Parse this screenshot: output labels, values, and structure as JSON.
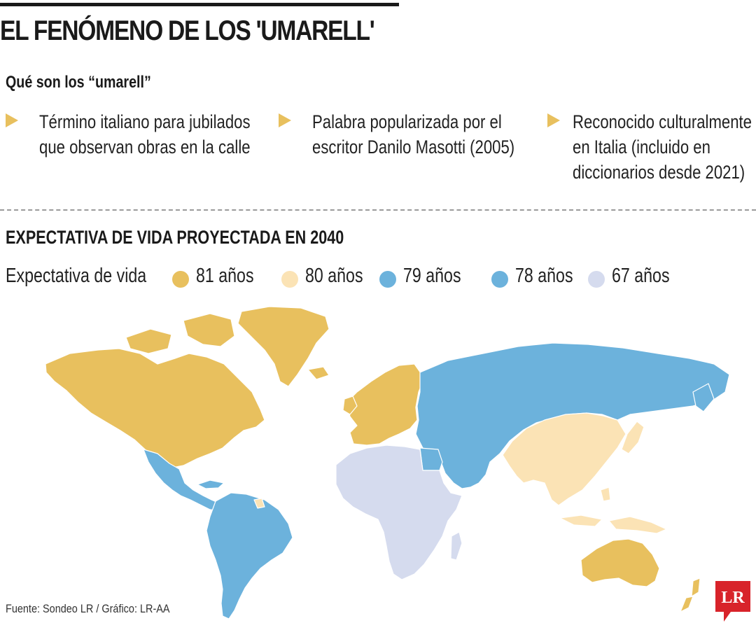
{
  "header": {
    "title": "EL FENÓMENO DE LOS 'UMARELL'",
    "subtitle": "Qué son los “umarell”"
  },
  "facts": [
    {
      "lines": [
        "Término italiano para jubilados",
        "que observan obras en la calle"
      ]
    },
    {
      "lines": [
        "Palabra popularizada por el",
        "escritor Danilo Masotti (2005)"
      ]
    },
    {
      "lines": [
        "Reconocido culturalmente",
        "en Italia (incluido en",
        "diccionarios desde 2021)"
      ]
    }
  ],
  "map": {
    "title": "EXPECTATIVA DE VIDA PROYECTADA EN 2040",
    "legend_label": "Expectativa de vida",
    "legend": [
      {
        "label": "81 años",
        "color": "#e8c05e"
      },
      {
        "label": "80 años",
        "color": "#fbe3b5"
      },
      {
        "label": "79 años",
        "color": "#6cb2dc"
      },
      {
        "label": "78 años",
        "color": "#6cb2dc"
      },
      {
        "label": "67 años",
        "color": "#d5dbee"
      }
    ],
    "regions": [
      {
        "name": "Norteamérica",
        "value": "81 años"
      },
      {
        "name": "Groenlandia",
        "value": "81 años"
      },
      {
        "name": "Europa occidental y nórdica",
        "value": "81 años"
      },
      {
        "name": "Australia y Nueva Zelanda",
        "value": "81 años"
      },
      {
        "name": "China, Japón y Sudeste asiático",
        "value": "80 años"
      },
      {
        "name": "Rusia, Asia central y Medio Oriente",
        "value": "79 años"
      },
      {
        "name": "México, Centroamérica y Sudamérica",
        "value": "78 años"
      },
      {
        "name": "África",
        "value": "67 años"
      }
    ]
  },
  "footer": {
    "source": "Fuente: Sondeo LR / Gráfico: LR-AA",
    "logo_text": "LR",
    "logo_color": "#d8232a"
  }
}
